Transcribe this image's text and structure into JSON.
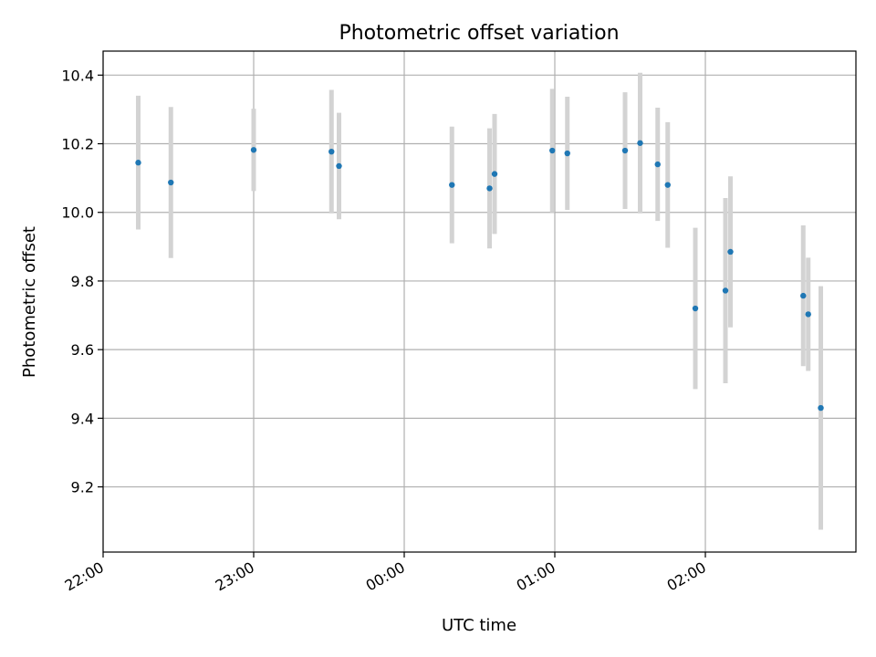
{
  "chart_data": {
    "type": "scatter",
    "title": "Photometric offset variation",
    "xlabel": "UTC time",
    "ylabel": "Photometric offset",
    "x_ticks": [
      "22:00",
      "23:00",
      "00:00",
      "01:00",
      "02:00"
    ],
    "x_tick_hours": [
      22,
      23,
      24,
      25,
      26
    ],
    "xlim_hours": [
      22,
      27.0
    ],
    "y_ticks": [
      9.2,
      9.4,
      9.6,
      9.8,
      10.0,
      10.2,
      10.4
    ],
    "ylim": [
      9.01,
      10.47
    ],
    "grid": true,
    "colors": {
      "point": "#1f77b4",
      "errorbar": "#d3d3d3",
      "grid": "#b0b0b0"
    },
    "series": [
      {
        "points": [
          {
            "time": "22:14",
            "y": 10.145,
            "yerr": 0.195
          },
          {
            "time": "22:27",
            "y": 10.087,
            "yerr": 0.22
          },
          {
            "time": "23:00",
            "y": 10.182,
            "yerr": 0.12
          },
          {
            "time": "23:31",
            "y": 10.177,
            "yerr": 0.18
          },
          {
            "time": "23:34",
            "y": 10.135,
            "yerr": 0.155
          },
          {
            "time": "00:19",
            "y": 10.08,
            "yerr": 0.17
          },
          {
            "time": "00:34",
            "y": 10.07,
            "yerr": 0.175
          },
          {
            "time": "00:36",
            "y": 10.112,
            "yerr": 0.175
          },
          {
            "time": "00:59",
            "y": 10.18,
            "yerr": 0.18
          },
          {
            "time": "01:05",
            "y": 10.172,
            "yerr": 0.165
          },
          {
            "time": "01:28",
            "y": 10.18,
            "yerr": 0.17
          },
          {
            "time": "01:34",
            "y": 10.202,
            "yerr": 0.205
          },
          {
            "time": "01:41",
            "y": 10.14,
            "yerr": 0.165
          },
          {
            "time": "01:45",
            "y": 10.08,
            "yerr": 0.183
          },
          {
            "time": "01:56",
            "y": 9.72,
            "yerr": 0.235
          },
          {
            "time": "02:08",
            "y": 9.772,
            "yerr": 0.27
          },
          {
            "time": "02:10",
            "y": 9.885,
            "yerr": 0.22
          },
          {
            "time": "02:39",
            "y": 9.757,
            "yerr": 0.205
          },
          {
            "time": "02:41",
            "y": 9.703,
            "yerr": 0.165
          },
          {
            "time": "02:46",
            "y": 9.43,
            "yerr": 0.355
          }
        ]
      }
    ]
  }
}
